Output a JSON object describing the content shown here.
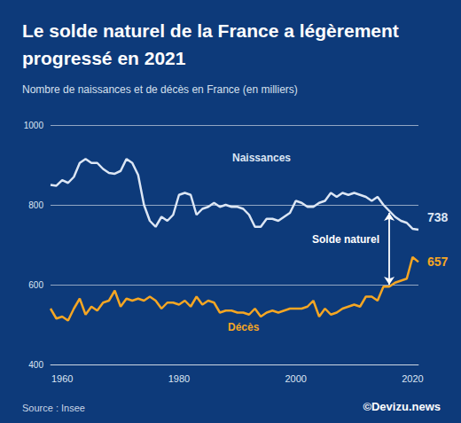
{
  "chart_data": {
    "type": "line",
    "title": "Le solde naturel de la France a légèrement\nprogressé en 2021",
    "subtitle": "Nombre de naissances et de décès en France (en milliers)",
    "source": "Source : Insee",
    "credit": "©Devizu.news",
    "x": [
      1958,
      1959,
      1960,
      1961,
      1962,
      1963,
      1964,
      1965,
      1966,
      1967,
      1968,
      1969,
      1970,
      1971,
      1972,
      1973,
      1974,
      1975,
      1976,
      1977,
      1978,
      1979,
      1980,
      1981,
      1982,
      1983,
      1984,
      1985,
      1986,
      1987,
      1988,
      1989,
      1990,
      1991,
      1992,
      1993,
      1994,
      1995,
      1996,
      1997,
      1998,
      1999,
      2000,
      2001,
      2002,
      2003,
      2004,
      2005,
      2006,
      2007,
      2008,
      2009,
      2010,
      2011,
      2012,
      2013,
      2014,
      2015,
      2016,
      2017,
      2018,
      2019,
      2020,
      2021
    ],
    "series": [
      {
        "name": "Naissances",
        "color": "#dce6f4",
        "values": [
          850,
          848,
          862,
          855,
          870,
          905,
          915,
          905,
          905,
          890,
          880,
          878,
          885,
          915,
          905,
          875,
          800,
          760,
          745,
          770,
          760,
          775,
          825,
          830,
          825,
          775,
          790,
          795,
          805,
          795,
          800,
          795,
          795,
          790,
          775,
          745,
          745,
          765,
          765,
          760,
          770,
          780,
          810,
          805,
          795,
          795,
          805,
          810,
          830,
          820,
          830,
          825,
          830,
          825,
          820,
          810,
          820,
          800,
          785,
          770,
          760,
          755,
          740,
          738
        ]
      },
      {
        "name": "Décès",
        "color": "#f5a623",
        "values": [
          540,
          515,
          520,
          510,
          540,
          565,
          525,
          545,
          535,
          555,
          560,
          585,
          545,
          565,
          560,
          565,
          560,
          570,
          560,
          540,
          555,
          555,
          550,
          560,
          545,
          570,
          550,
          560,
          555,
          530,
          535,
          535,
          530,
          530,
          525,
          540,
          520,
          530,
          535,
          530,
          535,
          540,
          540,
          540,
          545,
          560,
          520,
          540,
          525,
          530,
          540,
          545,
          550,
          545,
          570,
          570,
          560,
          595,
          595,
          605,
          610,
          615,
          669,
          657
        ]
      }
    ],
    "xlim": [
      1958,
      2021
    ],
    "xticks": [
      1960,
      1980,
      2000,
      2020
    ],
    "ylim": [
      400,
      1000
    ],
    "yticks": [
      400,
      600,
      800,
      1000
    ],
    "grid": true,
    "annotations": [
      {
        "text": "Solde naturel",
        "x": 2016
      }
    ]
  }
}
